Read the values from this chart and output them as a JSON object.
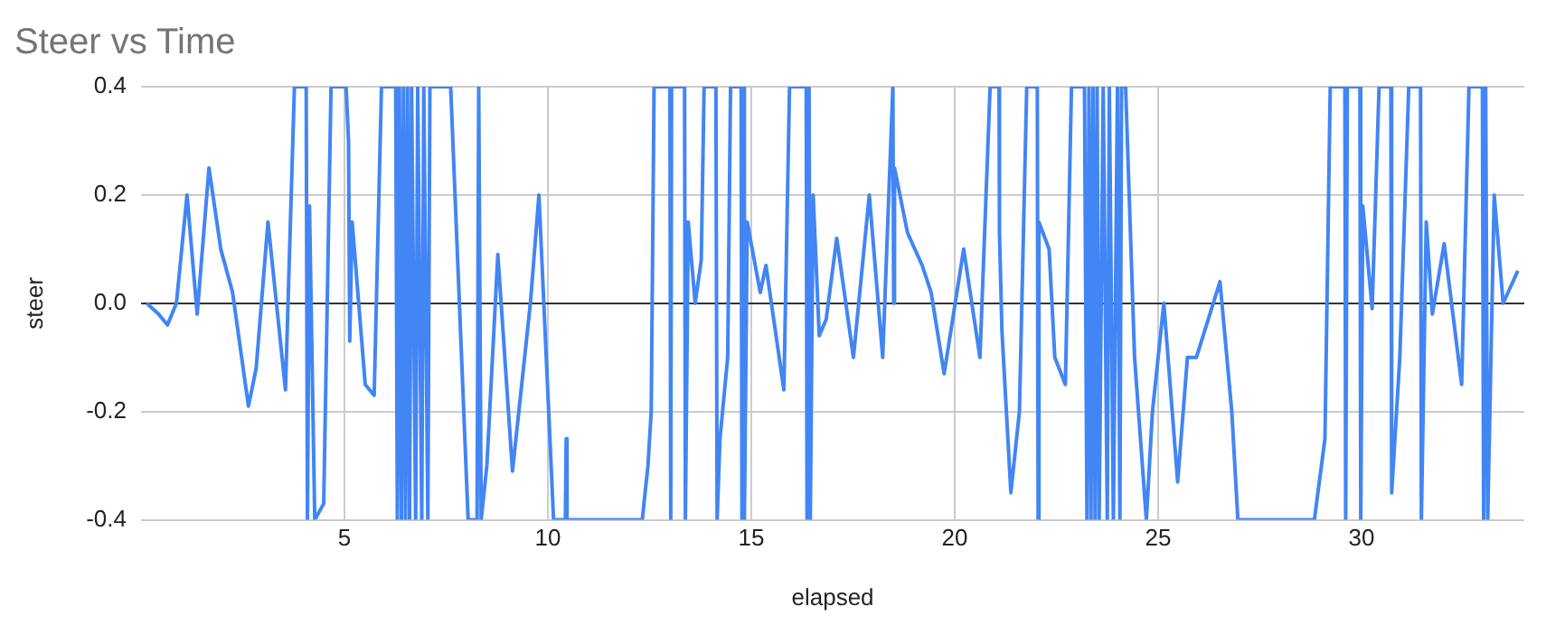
{
  "chart_data": {
    "type": "line",
    "title": "Steer vs Time",
    "xlabel": "elapsed",
    "ylabel": "steer",
    "xlim": [
      0,
      34
    ],
    "xticks": [
      5,
      10,
      15,
      20,
      25,
      30
    ],
    "ylim": [
      -0.4,
      0.4
    ],
    "yticks": [
      -0.4,
      -0.2,
      {
        "value": 0,
        "label": "0.0"
      },
      0.2,
      0.4
    ],
    "grid": true,
    "legend": false,
    "marker": "none",
    "line_style": "solid",
    "series": [
      {
        "color": "#4285f4",
        "x": [
          0.14,
          0.43,
          0.65,
          0.87,
          1.13,
          1.38,
          1.67,
          1.96,
          2.25,
          2.64,
          2.83,
          3.12,
          3.55,
          3.77,
          4.06,
          4.09,
          4.14,
          4.27,
          4.49,
          4.67,
          5.04,
          5.1,
          5.13,
          5.19,
          5.51,
          5.73,
          5.91,
          6.26,
          6.3,
          6.35,
          6.4,
          6.45,
          6.5,
          6.55,
          6.6,
          6.65,
          6.75,
          6.8,
          6.9,
          6.95,
          7.05,
          7.1,
          7.61,
          8.04,
          8.26,
          8.3,
          8.36,
          8.5,
          8.77,
          9.13,
          9.57,
          9.78,
          10.14,
          10.43,
          10.45,
          10.47,
          12.32,
          12.46,
          12.54,
          12.61,
          13.0,
          13.02,
          13.04,
          13.36,
          13.38,
          13.45,
          13.62,
          13.77,
          13.84,
          14.13,
          14.16,
          14.23,
          14.42,
          14.49,
          14.75,
          14.77,
          14.8,
          14.83,
          14.9,
          15.22,
          15.36,
          15.8,
          15.94,
          16.35,
          16.37,
          16.42,
          16.45,
          16.52,
          16.67,
          16.84,
          17.1,
          17.51,
          17.9,
          18.23,
          18.48,
          18.5,
          18.52,
          18.84,
          19.2,
          19.42,
          19.74,
          20.22,
          20.62,
          20.87,
          21.09,
          21.1,
          21.16,
          21.38,
          21.59,
          21.77,
          22.03,
          22.05,
          22.07,
          22.32,
          22.46,
          22.72,
          22.87,
          23.19,
          23.25,
          23.3,
          23.35,
          23.4,
          23.45,
          23.5,
          23.55,
          23.65,
          23.75,
          23.8,
          23.9,
          24.0,
          24.06,
          24.1,
          24.2,
          24.42,
          24.71,
          24.86,
          25.14,
          25.48,
          25.72,
          25.94,
          26.52,
          26.81,
          26.96,
          28.84,
          29.1,
          29.23,
          29.59,
          29.61,
          29.65,
          29.96,
          29.98,
          30.03,
          30.26,
          30.43,
          30.72,
          30.74,
          30.94,
          31.16,
          31.45,
          31.47,
          31.59,
          31.74,
          32.03,
          32.46,
          32.64,
          32.97,
          33.0,
          33.05,
          33.1,
          33.26,
          33.48,
          33.84
        ],
        "values": [
          0,
          -0.02,
          -0.04,
          0,
          0.2,
          -0.02,
          0.25,
          0.1,
          0.02,
          -0.19,
          -0.12,
          0.15,
          -0.16,
          0.4,
          0.4,
          -0.4,
          0.18,
          -0.4,
          -0.37,
          0.4,
          0.4,
          0.3,
          -0.07,
          0.15,
          -0.15,
          -0.17,
          0.4,
          0.4,
          -0.4,
          0.4,
          -0.4,
          0.4,
          -0.4,
          0.4,
          -0.4,
          0.4,
          -0.4,
          0.4,
          -0.4,
          0.4,
          -0.4,
          0.4,
          0.4,
          -0.4,
          -0.4,
          0.4,
          -0.4,
          -0.3,
          0.09,
          -0.31,
          0,
          0.2,
          -0.4,
          -0.4,
          -0.25,
          -0.4,
          -0.4,
          -0.3,
          -0.2,
          0.4,
          0.4,
          -0.4,
          0.4,
          0.4,
          -0.4,
          0.15,
          0,
          0.08,
          0.4,
          0.4,
          -0.4,
          -0.25,
          -0.1,
          0.4,
          0.4,
          -0.4,
          0.4,
          -0.4,
          0.15,
          0.02,
          0.07,
          -0.16,
          0.4,
          0.4,
          -0.4,
          0.4,
          -0.4,
          0.2,
          -0.06,
          -0.03,
          0.12,
          -0.1,
          0.2,
          -0.1,
          0.4,
          0,
          0.25,
          0.13,
          0.07,
          0.02,
          -0.13,
          0.1,
          -0.1,
          0.4,
          0.4,
          0.13,
          -0.05,
          -0.35,
          -0.2,
          0.4,
          0.4,
          -0.4,
          0.15,
          0.1,
          -0.1,
          -0.15,
          0.4,
          0.4,
          -0.4,
          0.4,
          -0.4,
          0.4,
          -0.4,
          0.4,
          -0.4,
          0.4,
          -0.4,
          0.4,
          -0.4,
          0.4,
          -0.4,
          0.4,
          0.4,
          -0.1,
          -0.4,
          -0.2,
          0,
          -0.33,
          -0.1,
          -0.1,
          0.04,
          -0.2,
          -0.4,
          -0.4,
          -0.25,
          0.4,
          0.4,
          -0.4,
          0.4,
          0.4,
          -0.4,
          0.18,
          -0.01,
          0.4,
          0.4,
          -0.35,
          -0.1,
          0.4,
          0.4,
          -0.4,
          0.15,
          -0.02,
          0.11,
          -0.15,
          0.4,
          0.4,
          -0.4,
          0.4,
          -0.4,
          0.2,
          0,
          0.06
        ]
      }
    ]
  }
}
